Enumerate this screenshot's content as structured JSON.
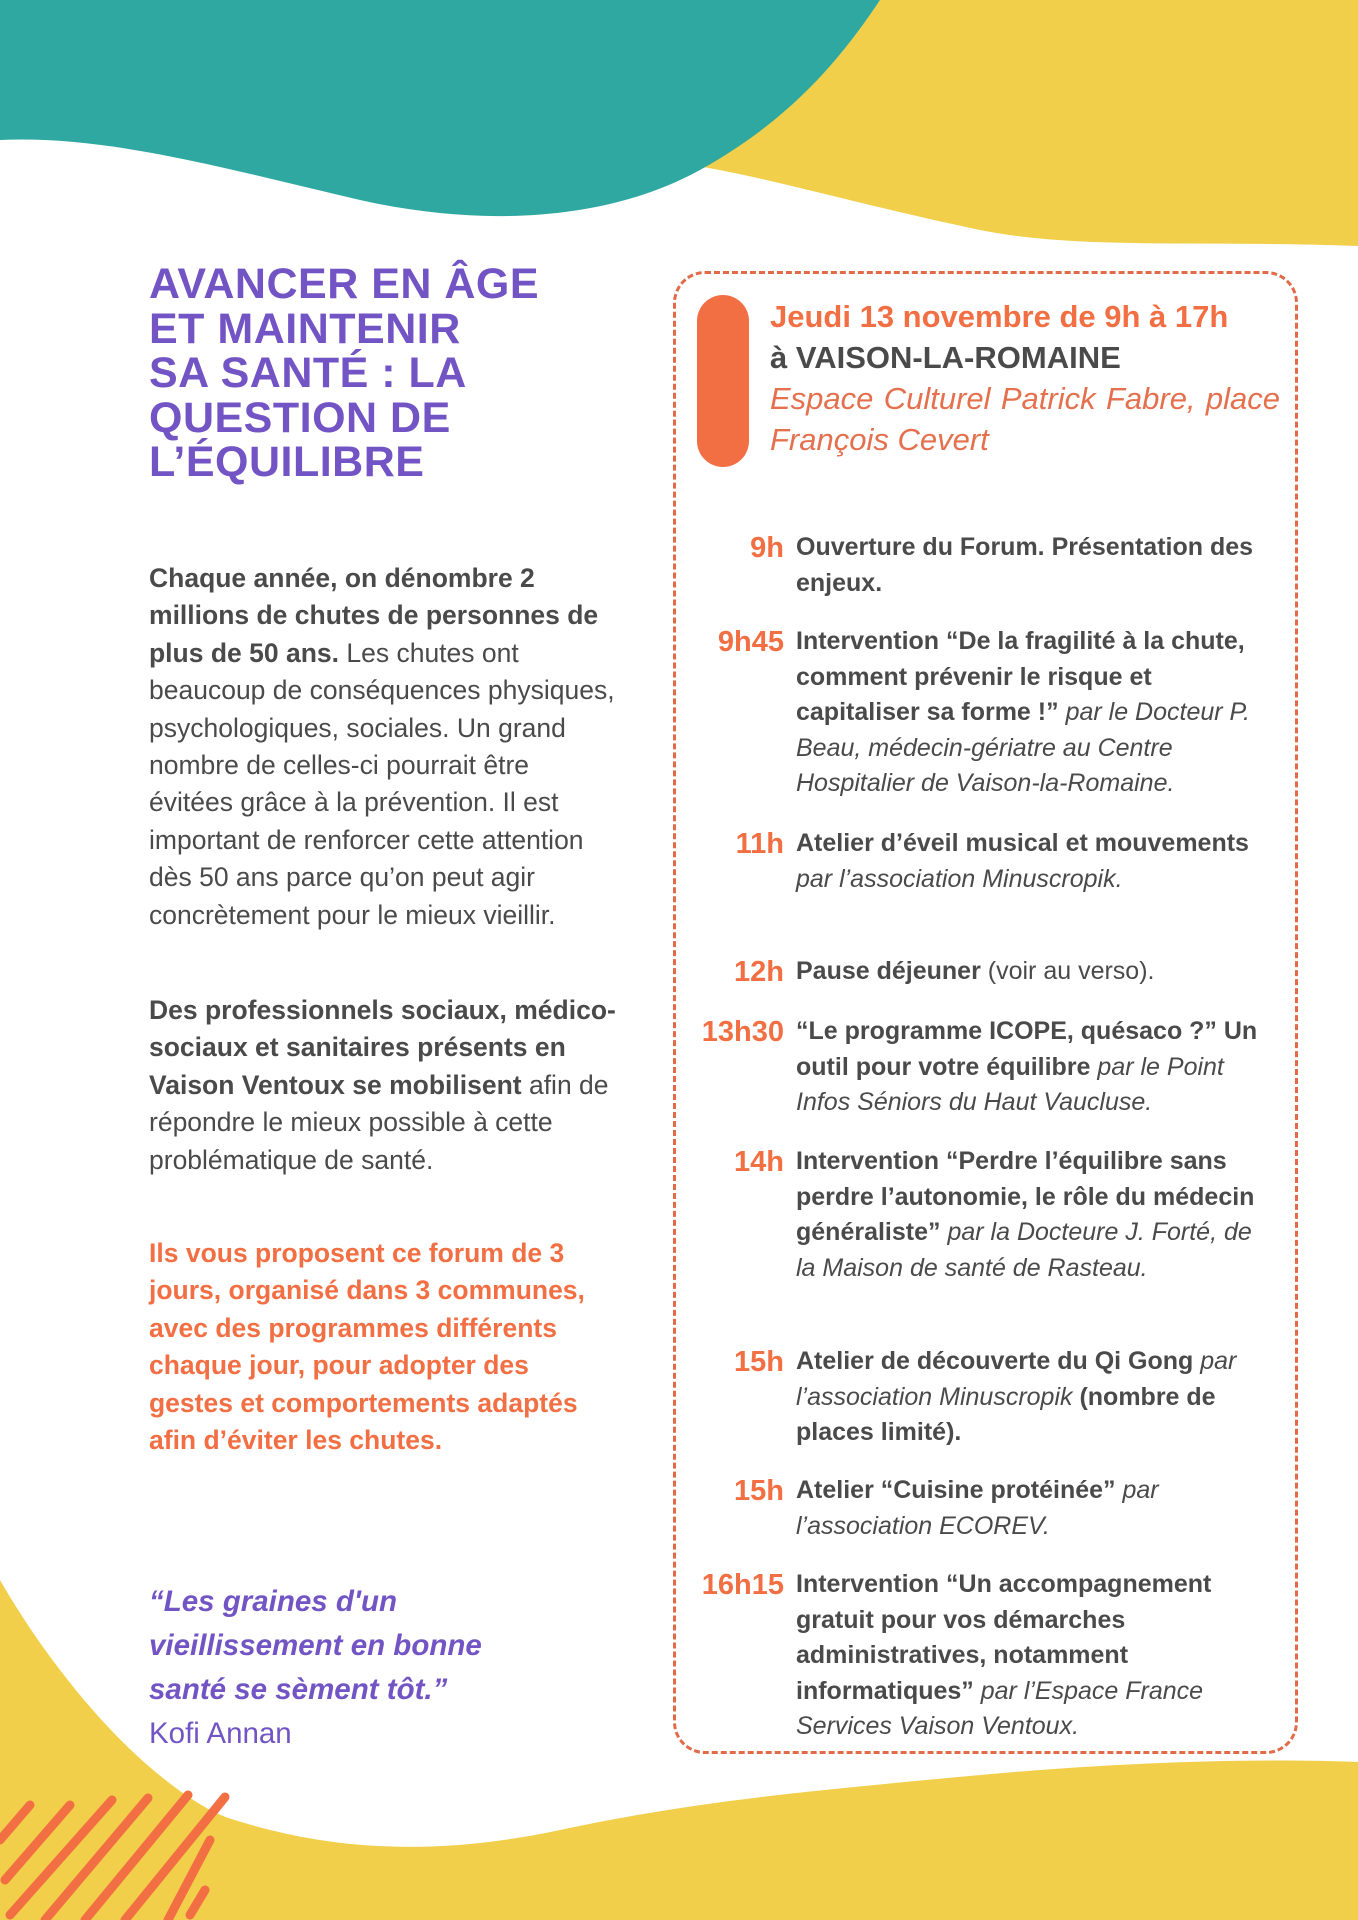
{
  "colors": {
    "teal": "#2fa8a2",
    "yellow": "#f2cf4a",
    "orange": "#f26f44",
    "purple": "#7254c4",
    "text": "#4a4a4a"
  },
  "title": {
    "lines": [
      "AVANCER EN ÂGE",
      "ET MAINTENIR",
      "SA SANTÉ : LA",
      "QUESTION DE",
      "L’ÉQUILIBRE"
    ]
  },
  "intro": {
    "p1": [
      {
        "t": "Chaque année, on dénombre 2 millions de chutes de personnes de plus de 50 ans.",
        "s": "b"
      },
      {
        "t": " Les chutes ont beaucoup de conséquences physiques, psychologiques, sociales. Un grand nombre de celles-ci pourrait être évitées grâce à la prévention. Il est important de renforcer cette attention dès 50 ans parce qu’on peut agir concrètement pour le mieux vieillir.",
        "s": "r"
      }
    ],
    "p2": [
      {
        "t": "Des professionnels sociaux, médico-sociaux et sanitaires présents en Vaison Ventoux se mobilisent",
        "s": "b"
      },
      {
        "t": " afin de répondre le mieux possible à cette problématique de santé.",
        "s": "r"
      }
    ],
    "p3": "Ils vous proposent ce forum de 3 jours, organisé dans 3 communes, avec des programmes différents chaque jour, pour adopter des gestes et comportements adaptés afin d’éviter les chutes."
  },
  "quote": {
    "lines": [
      "“Les graines d'un",
      "vieillissement en bonne",
      "santé se sèment tôt.”"
    ],
    "author": "Kofi Annan"
  },
  "event": {
    "date": "Jeudi 13 novembre de 9h à 17h",
    "place": "à VAISON-LA-ROMAINE",
    "venue": "Espace Culturel Patrick Fabre, place François Cevert"
  },
  "schedule": [
    {
      "time": "9h",
      "parts": [
        {
          "t": "Ouverture du Forum. Présentation des enjeux.",
          "s": "b"
        }
      ]
    },
    {
      "time": "9h45",
      "parts": [
        {
          "t": "Intervention “De la fragilité à la chute, comment prévenir le risque et capitaliser sa forme !”",
          "s": "b"
        },
        {
          "t": " par le Docteur P. Beau, médecin-gériatre au Centre Hospitalier de Vaison-la-Romaine.",
          "s": "i"
        }
      ]
    },
    {
      "time": "11h",
      "parts": [
        {
          "t": "Atelier d’éveil musical et mouvements",
          "s": "b"
        },
        {
          "t": " par l’association Minuscropik.",
          "s": "i"
        }
      ]
    },
    {
      "time": "12h",
      "parts": [
        {
          "t": "Pause déjeuner",
          "s": "b"
        },
        {
          "t": " (voir au verso).",
          "s": "r"
        }
      ]
    },
    {
      "time": "13h30",
      "parts": [
        {
          "t": "“Le programme ICOPE, quésaco ?” Un outil pour votre équilibre",
          "s": "b"
        },
        {
          "t": " par le Point Infos Séniors du Haut Vaucluse.",
          "s": "i"
        }
      ]
    },
    {
      "time": "14h",
      "parts": [
        {
          "t": "Intervention “Perdre l’équilibre sans perdre l’autonomie, le rôle du médecin généraliste”",
          "s": "b"
        },
        {
          "t": " par la Docteure J. Forté, de la Maison de santé de Rasteau.",
          "s": "i"
        }
      ]
    },
    {
      "time": "15h",
      "parts": [
        {
          "t": "Atelier de découverte du Qi Gong ",
          "s": "b"
        },
        {
          "t": "par l’association Minuscropik",
          "s": "i"
        },
        {
          "t": " (nombre de places limité).",
          "s": "b"
        }
      ]
    },
    {
      "time": "15h",
      "parts": [
        {
          "t": "Atelier “Cuisine protéinée”",
          "s": "b"
        },
        {
          "t": " par l’association ECOREV.",
          "s": "i"
        }
      ]
    },
    {
      "time": "16h15",
      "parts": [
        {
          "t": "Intervention “Un accompagnement gratuit pour vos démarches administratives, notamment informatiques”",
          "s": "b"
        },
        {
          "t": " par l’Espace France Services Vaison Ventoux.",
          "s": "i"
        }
      ]
    }
  ]
}
